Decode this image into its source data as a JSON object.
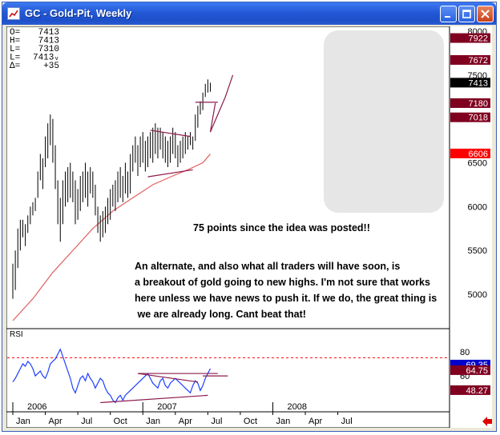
{
  "window": {
    "title": "GC - Gold-Pit, Weekly",
    "colors": {
      "titlebar": "#2358d6",
      "close": "#c8421c"
    }
  },
  "ohlc_readout": [
    {
      "label": "O=",
      "value": "7413"
    },
    {
      "label": "H=",
      "value": "7413"
    },
    {
      "label": "L=",
      "value": "7310"
    },
    {
      "label": "L=",
      "value": "7413ᵥ"
    },
    {
      "label": "Δ=",
      "value": "+35"
    }
  ],
  "annotations": {
    "headline": "75 points since the idea was posted!!",
    "body": [
      "An alternate, and also what all traders will have soon, is",
      "a breakout of gold going to new highs. I'm not sure that works",
      "here unless we have news to push it. If we do, the great thing is",
      " we are already long. Cant beat that!"
    ]
  },
  "chart_data": [
    {
      "type": "ohlc",
      "title": "",
      "ylim": [
        4700,
        8000
      ],
      "yticks": [
        5000,
        5500,
        6000,
        6500,
        7000,
        7500,
        8000
      ],
      "grid": false,
      "price_markers": [
        {
          "value": 7922,
          "label": "7922",
          "color": "#800020"
        },
        {
          "value": 7672,
          "label": "7672",
          "color": "#800020"
        },
        {
          "value": 7413,
          "label": "7413",
          "color": "#000000"
        },
        {
          "value": 7180,
          "label": "7180",
          "color": "#800020"
        },
        {
          "value": 7018,
          "label": "7018",
          "color": "#800020"
        },
        {
          "value": 6606,
          "label": "6606",
          "color": "#ff0000"
        }
      ],
      "bars": [
        [
          0,
          4950,
          5350
        ],
        [
          1,
          5050,
          5500
        ],
        [
          2,
          5300,
          5750
        ],
        [
          3,
          5500,
          5850
        ],
        [
          4,
          5650,
          5850
        ],
        [
          5,
          5550,
          5800
        ],
        [
          6,
          5700,
          5900
        ],
        [
          7,
          5800,
          6000
        ],
        [
          8,
          5900,
          6050
        ],
        [
          9,
          5950,
          6100
        ],
        [
          10,
          6100,
          6400
        ],
        [
          11,
          6300,
          6600
        ],
        [
          12,
          6200,
          6550
        ],
        [
          13,
          6450,
          6800
        ],
        [
          14,
          6550,
          6950
        ],
        [
          15,
          6700,
          7050
        ],
        [
          16,
          6500,
          7000
        ],
        [
          17,
          6200,
          6700
        ],
        [
          18,
          5800,
          6300
        ],
        [
          19,
          5600,
          6100
        ],
        [
          20,
          5800,
          6300
        ],
        [
          21,
          6000,
          6400
        ],
        [
          22,
          6050,
          6450
        ],
        [
          23,
          6100,
          6500
        ],
        [
          24,
          6050,
          6400
        ],
        [
          25,
          5800,
          6300
        ],
        [
          26,
          5850,
          6200
        ],
        [
          27,
          5950,
          6350
        ],
        [
          28,
          6050,
          6400
        ],
        [
          29,
          6100,
          6500
        ],
        [
          30,
          6000,
          6400
        ],
        [
          31,
          6150,
          6450
        ],
        [
          32,
          6100,
          6400
        ],
        [
          33,
          5900,
          6250
        ],
        [
          34,
          5700,
          6000
        ],
        [
          35,
          5600,
          5900
        ],
        [
          36,
          5650,
          5950
        ],
        [
          37,
          5700,
          6000
        ],
        [
          38,
          5800,
          6100
        ],
        [
          39,
          5850,
          6200
        ],
        [
          40,
          6000,
          6250
        ],
        [
          41,
          5950,
          6300
        ],
        [
          42,
          6050,
          6400
        ],
        [
          43,
          6100,
          6450
        ],
        [
          44,
          6050,
          6350
        ],
        [
          45,
          6150,
          6500
        ],
        [
          46,
          6100,
          6400
        ],
        [
          47,
          6150,
          6600
        ],
        [
          48,
          6400,
          6700
        ],
        [
          49,
          6500,
          6800
        ],
        [
          50,
          6350,
          6700
        ],
        [
          51,
          6450,
          6800
        ],
        [
          52,
          6500,
          6850
        ],
        [
          53,
          6400,
          6750
        ],
        [
          54,
          6450,
          6800
        ],
        [
          55,
          6550,
          6850
        ],
        [
          56,
          6500,
          6900
        ],
        [
          57,
          6600,
          6950
        ],
        [
          58,
          6550,
          6900
        ],
        [
          59,
          6650,
          6900
        ],
        [
          60,
          6550,
          6850
        ],
        [
          61,
          6500,
          6800
        ],
        [
          62,
          6450,
          6750
        ],
        [
          63,
          6500,
          6800
        ],
        [
          64,
          6600,
          6900
        ],
        [
          65,
          6550,
          6850
        ],
        [
          66,
          6450,
          6700
        ],
        [
          67,
          6500,
          6750
        ],
        [
          68,
          6550,
          6800
        ],
        [
          69,
          6600,
          6850
        ],
        [
          70,
          6650,
          6800
        ],
        [
          71,
          6700,
          6850
        ],
        [
          72,
          6650,
          6800
        ],
        [
          73,
          6750,
          7050
        ],
        [
          74,
          6900,
          7150
        ],
        [
          75,
          7050,
          7200
        ],
        [
          76,
          7100,
          7300
        ],
        [
          77,
          7250,
          7400
        ],
        [
          78,
          7300,
          7450
        ],
        [
          79,
          7310,
          7413
        ]
      ],
      "moving_average": [
        [
          0,
          4700
        ],
        [
          8,
          4950
        ],
        [
          16,
          5250
        ],
        [
          24,
          5500
        ],
        [
          32,
          5750
        ],
        [
          40,
          5950
        ],
        [
          48,
          6100
        ],
        [
          56,
          6250
        ],
        [
          64,
          6350
        ],
        [
          70,
          6420
        ],
        [
          76,
          6500
        ],
        [
          79,
          6600
        ]
      ],
      "trendlines": [
        {
          "from": [
            55,
            6870
          ],
          "to": [
            71,
            6800
          ]
        },
        {
          "from": [
            54,
            6340
          ],
          "to": [
            72,
            6420
          ]
        },
        {
          "from": [
            73,
            7190
          ],
          "to": [
            82,
            7190
          ]
        }
      ],
      "projection": [
        [
          81,
          7180
        ],
        [
          79,
          6850
        ],
        [
          85,
          7250
        ],
        [
          88,
          7500
        ]
      ]
    },
    {
      "type": "line",
      "title": "RSI",
      "ylim": [
        37,
        95
      ],
      "yticks": [
        80,
        60
      ],
      "reference_lines": [
        {
          "value": 75,
          "style": "dashed",
          "color": "#ff0000"
        }
      ],
      "values_marked": [
        {
          "value": 69.35,
          "label": "69.35",
          "color": "#0000cc"
        },
        {
          "value": 64.75,
          "label": "64.75",
          "color": "#800020"
        },
        {
          "value": 48.27,
          "label": "48.27",
          "color": "#800020"
        }
      ],
      "series": [
        {
          "values": [
            55,
            58,
            62,
            66,
            70,
            68,
            72,
            70,
            66,
            60,
            62,
            64,
            60,
            58,
            63,
            70,
            72,
            74,
            78,
            82,
            76,
            70,
            64,
            58,
            50,
            46,
            52,
            58,
            60,
            56,
            62,
            58,
            55,
            50,
            54,
            58,
            56,
            50,
            46,
            44,
            40,
            38,
            42,
            44,
            40,
            44,
            46,
            48,
            50,
            52,
            54,
            56,
            58,
            60,
            62,
            58,
            54,
            52,
            50,
            56,
            58,
            52,
            50,
            54,
            56,
            58,
            56,
            54,
            52,
            50,
            48,
            46,
            52,
            56,
            54,
            48,
            52,
            58,
            62,
            66
          ]
        }
      ],
      "trendlines": [
        {
          "from": [
            50,
            62
          ],
          "to": [
            74,
            55
          ]
        },
        {
          "from": [
            50,
            62
          ],
          "to": [
            82,
            62
          ]
        },
        {
          "from": [
            35,
            38
          ],
          "to": [
            78,
            44
          ]
        },
        {
          "from": [
            76,
            60
          ],
          "to": [
            86,
            60
          ]
        }
      ]
    }
  ],
  "time_axis": {
    "years": [
      {
        "label": "2006",
        "x": 0
      },
      {
        "label": "2007",
        "x": 52
      },
      {
        "label": "2008",
        "x": 104
      }
    ],
    "months": [
      {
        "label": "Jan",
        "x": 0
      },
      {
        "label": "Apr",
        "x": 13
      },
      {
        "label": "Jul",
        "x": 26
      },
      {
        "label": "Oct",
        "x": 39
      },
      {
        "label": "Jan",
        "x": 52
      },
      {
        "label": "Apr",
        "x": 65
      },
      {
        "label": "Jul",
        "x": 78
      },
      {
        "label": "Oct",
        "x": 91
      },
      {
        "label": "Jan",
        "x": 104
      },
      {
        "label": "Apr",
        "x": 117
      },
      {
        "label": "Jul",
        "x": 130
      }
    ]
  }
}
